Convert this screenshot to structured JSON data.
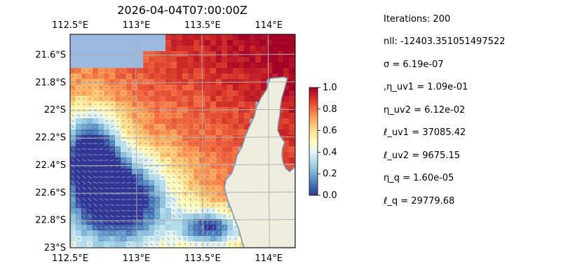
{
  "chart_data": {
    "type": "heatmap",
    "title": "2026-04-04T07:00:00Z",
    "x_ticks_top": [
      "112.5°E",
      "113°E",
      "113.5°E",
      "114°E"
    ],
    "x_ticks_bottom": [
      "112.5°E",
      "113°E",
      "113.5°E",
      "114°E"
    ],
    "x_tick_values": [
      112.5,
      113.0,
      113.5,
      114.0
    ],
    "y_ticks": [
      "21.6°S",
      "21.8°S",
      "22°S",
      "22.2°S",
      "22.4°S",
      "22.6°S",
      "22.8°S",
      "23°S"
    ],
    "y_tick_values": [
      21.6,
      21.8,
      22.0,
      22.2,
      22.4,
      22.6,
      22.8,
      23.0
    ],
    "xlim": [
      112.5,
      114.2
    ],
    "ylim": [
      21.45,
      23.0
    ],
    "colorbar": {
      "ticks": [
        "0.0",
        "0.2",
        "0.4",
        "0.6",
        "0.8",
        "1.0"
      ],
      "range": [
        0,
        1
      ],
      "colormap": "RdYlBu_r"
    },
    "grid": true,
    "ocean_color": "#9bb8e0",
    "land_color": "#efedde",
    "coast_color": "#7d8fa8"
  },
  "info": {
    "iterations": "Iterations: 200",
    "nll": "nll: -12403.351051497522",
    "sigma": "σ = 6.19e-07",
    "eta_uv1": ",η_uv1 = 1.09e-01",
    "eta_uv2": "η_uv2 = 6.12e-02",
    "ell_uv1": "ℓ_uv1 = 37085.42",
    "ell_uv2": "ℓ_uv2 = 9675.15",
    "eta_q": "η_q = 1.60e-05",
    "ell_q": "ℓ_q = 29779.68"
  }
}
